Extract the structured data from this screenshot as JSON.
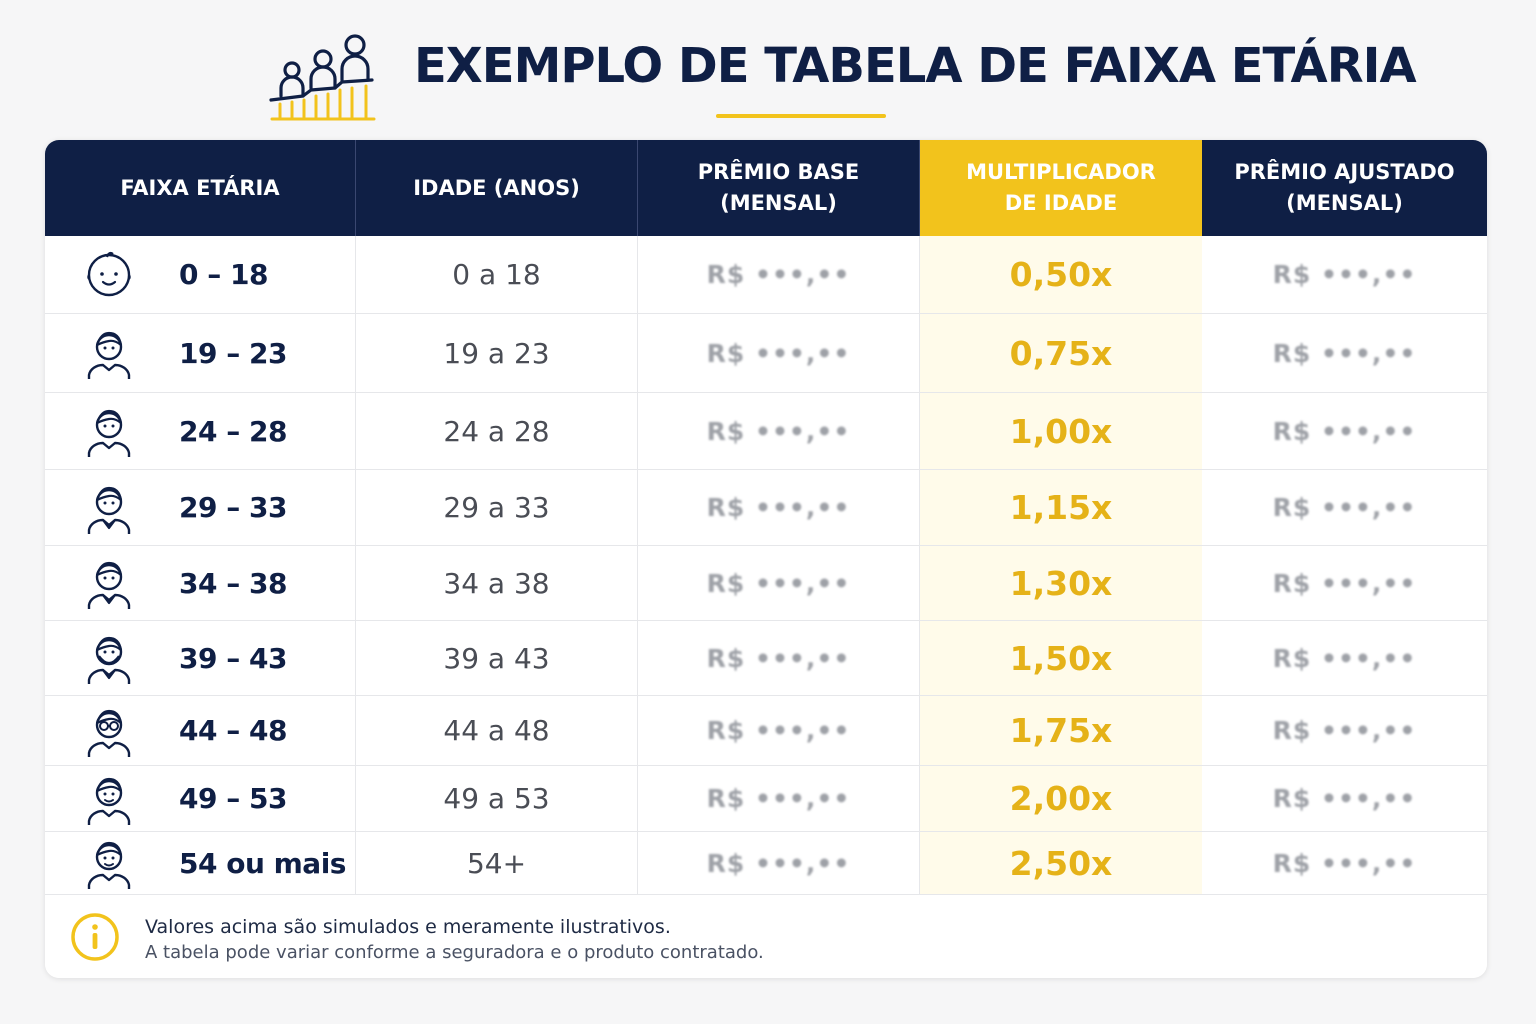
{
  "header": {
    "title": "EXEMPLO DE TABELA DE FAIXA ETÁRIA",
    "logo_icon": "family-steps-icon"
  },
  "colors": {
    "navy": "#0f1f45",
    "accent": "#f2c31c",
    "multiplier_text": "#e5b218"
  },
  "table": {
    "columns": [
      {
        "key": "faixa",
        "label": "FAIXA ETÁRIA"
      },
      {
        "key": "idade",
        "label": "IDADE (ANOS)"
      },
      {
        "key": "base",
        "label": "PRÊMIO BASE\n(MENSAL)"
      },
      {
        "key": "mult",
        "label": "MULTIPLICADOR\nDE IDADE"
      },
      {
        "key": "ajustado",
        "label": "PRÊMIO AJUSTADO\n(MENSAL)"
      }
    ],
    "rows": [
      {
        "range": "0 – 18",
        "age": "0 a 18",
        "base": "R$ •••,••",
        "mult": "0,50x",
        "adjusted": "R$ •••,••",
        "icon": "baby-face-icon"
      },
      {
        "range": "19 – 23",
        "age": "19 a 23",
        "base": "R$ •••,••",
        "mult": "0,75x",
        "adjusted": "R$ •••,••",
        "icon": "young-person-icon"
      },
      {
        "range": "24 – 28",
        "age": "24 a 28",
        "base": "R$ •••,••",
        "mult": "1,00x",
        "adjusted": "R$ •••,••",
        "icon": "adult-person-icon"
      },
      {
        "range": "29 – 33",
        "age": "29 a 33",
        "base": "R$ •••,••",
        "mult": "1,15x",
        "adjusted": "R$ •••,••",
        "icon": "adult-collar-person-icon"
      },
      {
        "range": "34 – 38",
        "age": "34 a 38",
        "base": "R$ •••,••",
        "mult": "1,30x",
        "adjusted": "R$ •••,••",
        "icon": "adult-shirt-person-icon"
      },
      {
        "range": "39 – 43",
        "age": "39 a 43",
        "base": "R$ •••,••",
        "mult": "1,50x",
        "adjusted": "R$ •••,••",
        "icon": "bearded-person-icon"
      },
      {
        "range": "44 – 48",
        "age": "44 a 48",
        "base": "R$ •••,••",
        "mult": "1,75x",
        "adjusted": "R$ •••,••",
        "icon": "glasses-person-icon"
      },
      {
        "range": "49 – 53",
        "age": "49 a 53",
        "base": "R$ •••,••",
        "mult": "2,00x",
        "adjusted": "R$ •••,••",
        "icon": "middle-aged-person-icon"
      },
      {
        "range": "54 ou mais",
        "age": "54+",
        "base": "R$ •••,••",
        "mult": "2,50x",
        "adjusted": "R$ •••,••",
        "icon": "senior-person-icon"
      }
    ]
  },
  "footer": {
    "icon": "info-icon",
    "note_line1": "Valores acima são simulados e meramente ilustrativos.",
    "note_line2": "A tabela pode variar conforme a seguradora e o produto contratado."
  }
}
